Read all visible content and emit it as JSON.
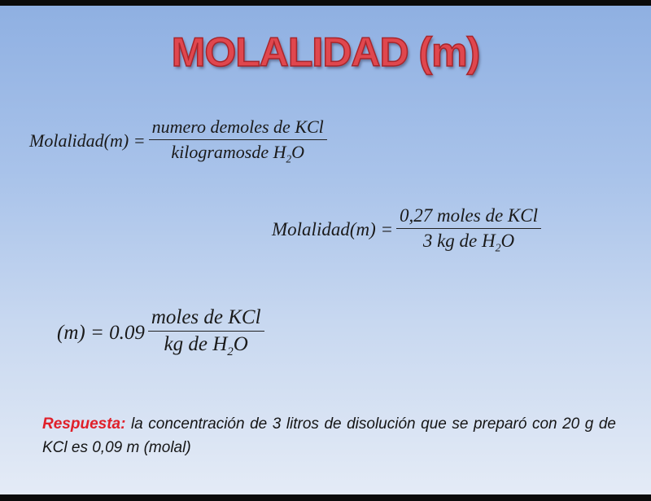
{
  "title": "MOLALIDAD (m)",
  "eq1": {
    "lhs": "Molalidad(m) =",
    "numerator": "numero demoles de KCl",
    "denominator_pre": "kilogramosde H",
    "sub": "2",
    "denominator_post": "O"
  },
  "eq2": {
    "lhs": "Molalidad(m) =",
    "numerator": "0,27 moles de KCl",
    "denominator_pre": "3 kg de H",
    "sub": "2",
    "denominator_post": "O"
  },
  "eq3": {
    "lhs": "(m) = 0.09",
    "numerator": "moles de KCl",
    "denominator_pre": "kg de H",
    "sub": "2",
    "denominator_post": "O"
  },
  "answer": {
    "label": "Respuesta:",
    "text": " la concentración de 3 litros de disolución que se preparó con 20 g de KCl es 0,09 m (molal)"
  },
  "colors": {
    "title": "#e0474e",
    "label": "#e0202a"
  }
}
